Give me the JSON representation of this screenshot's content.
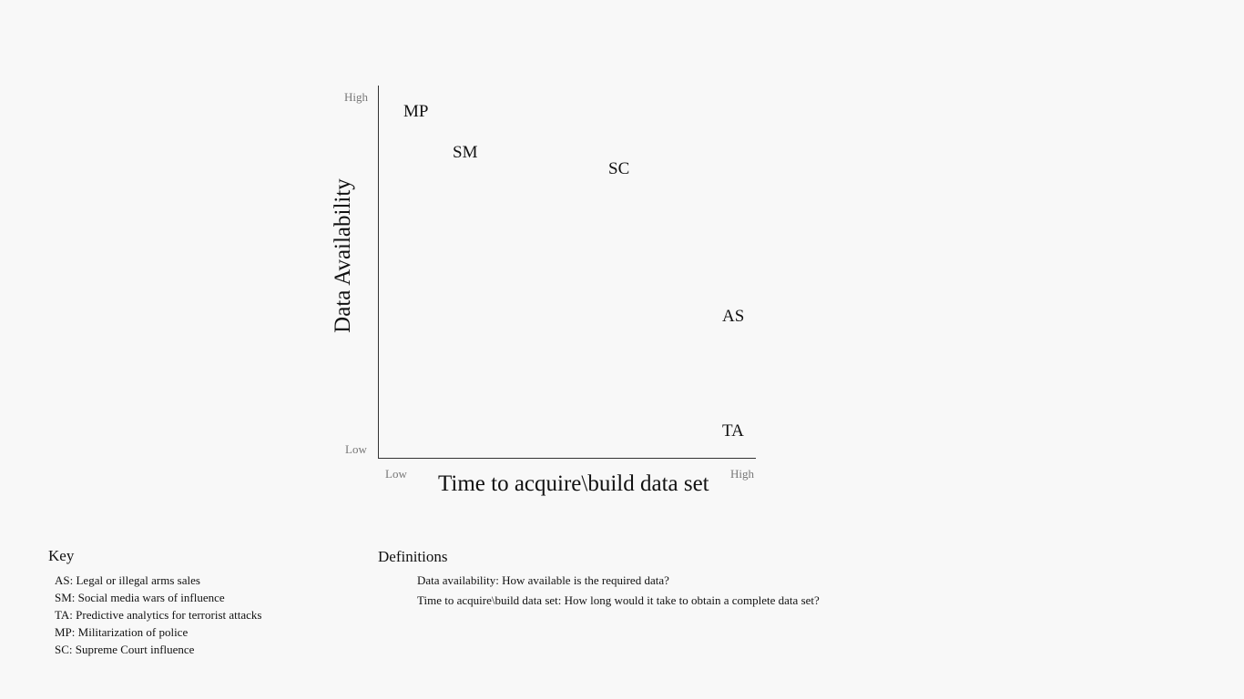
{
  "chart": {
    "y_axis_title": "Data Availability",
    "x_axis_title": "Time to acquire\\build data set",
    "y_ticks": {
      "high": "High",
      "low": "Low"
    },
    "x_ticks": {
      "low": "Low",
      "high": "High"
    },
    "points": {
      "mp": "MP",
      "sm": "SM",
      "sc": "SC",
      "as": "AS",
      "ta": "TA"
    }
  },
  "key": {
    "title": "Key",
    "items": [
      "AS: Legal or illegal arms sales",
      "SM: Social media wars of influence",
      "TA: Predictive analytics for terrorist attacks",
      "MP: Militarization of police",
      "SC: Supreme Court influence"
    ]
  },
  "definitions": {
    "title": "Definitions",
    "items": [
      "Data availability: How available is the required data?",
      "Time to acquire\\build data set: How long would it take to obtain a complete data set?"
    ]
  }
}
